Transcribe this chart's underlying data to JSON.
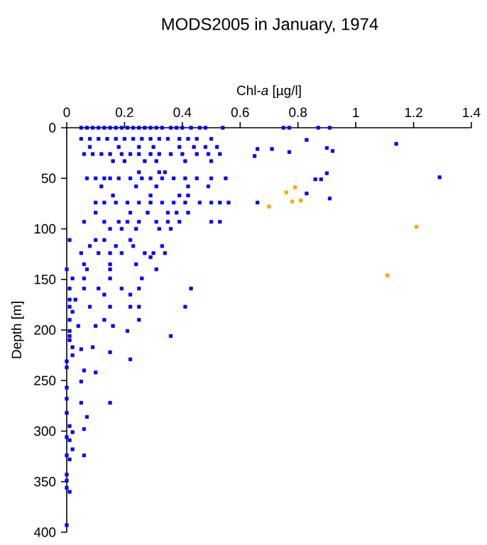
{
  "chart_data": {
    "type": "scatter",
    "title": "MODS2005 in January, 1974",
    "xlabel": "Chl-*a* [µg/l]",
    "ylabel": "Depth [m]",
    "xlim": [
      0,
      1.4
    ],
    "xticks": [
      0,
      0.2,
      0.4,
      0.6,
      0.8,
      1,
      1.2,
      1.4
    ],
    "ylim": [
      400,
      0
    ],
    "yticks": [
      0,
      50,
      100,
      150,
      200,
      250,
      300,
      350,
      400
    ],
    "marker": "square",
    "series": [
      {
        "color": "#0000ff",
        "x": [
          0.05,
          0.07,
          0.09,
          0.11,
          0.13,
          0.15,
          0.17,
          0.19,
          0.21,
          0.23,
          0.25,
          0.27,
          0.29,
          0.31,
          0.33,
          0.36,
          0.38,
          0.4,
          0.43,
          0.46,
          0.48,
          0.54,
          0.75,
          0.77,
          0.87,
          0.91,
          0.05,
          0.08,
          0.11,
          0.14,
          0.17,
          0.2,
          0.23,
          0.26,
          0.29,
          0.32,
          0.35,
          0.39,
          0.42,
          0.45,
          0.5,
          0.83,
          0.08,
          0.18,
          0.25,
          0.3,
          0.39,
          0.44,
          0.48,
          0.52,
          0.9,
          0.71,
          1.14,
          0.92,
          0.66,
          0.77,
          0.65,
          0.06,
          0.09,
          0.12,
          0.15,
          0.19,
          0.22,
          0.25,
          0.29,
          0.32,
          0.36,
          0.4,
          0.45,
          0.49,
          0.53,
          0.16,
          0.2,
          0.27,
          0.31,
          0.41,
          0.5,
          0.25,
          0.32,
          0.34,
          0.9,
          0.07,
          0.1,
          0.13,
          0.15,
          0.18,
          0.22,
          0.26,
          0.29,
          0.33,
          0.37,
          0.41,
          0.45,
          0.5,
          0.55,
          0.86,
          0.88,
          1.29,
          0.12,
          0.24,
          0.31,
          0.42,
          0.49,
          0.16,
          0.29,
          0.39,
          0.42,
          0.83,
          0.91,
          0.1,
          0.13,
          0.17,
          0.21,
          0.25,
          0.29,
          0.33,
          0.37,
          0.41,
          0.46,
          0.5,
          0.53,
          0.56,
          0.66,
          0.1,
          0.22,
          0.28,
          0.35,
          0.38,
          0.42,
          0.06,
          0.13,
          0.18,
          0.21,
          0.25,
          0.31,
          0.35,
          0.39,
          0.5,
          0.53,
          0.15,
          0.19,
          0.24,
          0.32,
          0.36,
          0.01,
          0.1,
          0.13,
          0.22,
          0.08,
          0.17,
          0.23,
          0.33,
          0.05,
          0.11,
          0.15,
          0.19,
          0.27,
          0.3,
          0.34,
          0.29,
          0.06,
          0.15,
          0.24,
          0,
          0.07,
          0.15,
          0.31,
          0.02,
          0.06,
          0.15,
          0.26,
          0.01,
          0.06,
          0.11,
          0.19,
          0.25,
          0.43,
          0.13,
          0.22,
          0.01,
          0.03,
          0.01,
          0.08,
          0.15,
          0.22,
          0.25,
          0.41,
          0.02,
          0.01,
          0.13,
          0.25,
          0.04,
          0.1,
          0.16,
          0.01,
          0.21,
          0.01,
          0.36,
          0.01,
          0.02,
          0.09,
          0.05,
          0.15,
          0.02,
          0.22,
          0,
          0,
          0.06,
          0.1,
          0.05,
          0,
          0,
          0.05,
          0.15,
          0,
          0.07,
          0.01,
          0.06,
          0.02,
          0,
          0.01,
          0.02,
          0.06,
          0,
          0.01,
          0,
          0,
          0,
          0.01,
          0
        ],
        "values": [
          0,
          0,
          0,
          0,
          0,
          0,
          0,
          0,
          0,
          0,
          0,
          0,
          0,
          0,
          0,
          0,
          0,
          0,
          0,
          0,
          0,
          0,
          0,
          0,
          0,
          0,
          11,
          11,
          11,
          11,
          11,
          11,
          11,
          11,
          11,
          11,
          11,
          11,
          11,
          11,
          11,
          12,
          19,
          19,
          19,
          19,
          19,
          19,
          19,
          19,
          20,
          21,
          16,
          23,
          21,
          24,
          28,
          26,
          26,
          26,
          26,
          26,
          26,
          26,
          26,
          26,
          26,
          26,
          26,
          26,
          26,
          33,
          33,
          33,
          33,
          33,
          33,
          44,
          44,
          44,
          45,
          50,
          50,
          50,
          50,
          50,
          50,
          50,
          50,
          50,
          50,
          50,
          50,
          50,
          50,
          51,
          51,
          49,
          58,
          58,
          58,
          58,
          58,
          67,
          67,
          67,
          67,
          65,
          70,
          74,
          74,
          74,
          74,
          74,
          74,
          74,
          74,
          74,
          74,
          74,
          74,
          74,
          74,
          84,
          84,
          84,
          84,
          84,
          84,
          93,
          93,
          93,
          93,
          93,
          93,
          93,
          93,
          93,
          93,
          100,
          100,
          100,
          100,
          100,
          111,
          111,
          111,
          111,
          117,
          117,
          117,
          117,
          124,
          124,
          124,
          124,
          124,
          124,
          124,
          128,
          135,
          135,
          135,
          140,
          140,
          140,
          140,
          149,
          149,
          149,
          149,
          159,
          159,
          159,
          159,
          159,
          159,
          165,
          165,
          170,
          170,
          177,
          177,
          177,
          177,
          177,
          177,
          182,
          190,
          190,
          190,
          196,
          196,
          196,
          201,
          201,
          206,
          206,
          210,
          217,
          217,
          219,
          222,
          225,
          229,
          231,
          237,
          240,
          242,
          251,
          257,
          268,
          272,
          272,
          282,
          286,
          295,
          298,
          301,
          306,
          309,
          318,
          324,
          324,
          328,
          343,
          349,
          356,
          360,
          393
        ]
      },
      {
        "color": "#ffa500",
        "x": [
          0.76,
          0.79,
          0.7,
          0.78,
          0.81,
          1.21,
          1.11
        ],
        "values": [
          64,
          59,
          78,
          73,
          72,
          98,
          146
        ]
      }
    ]
  }
}
